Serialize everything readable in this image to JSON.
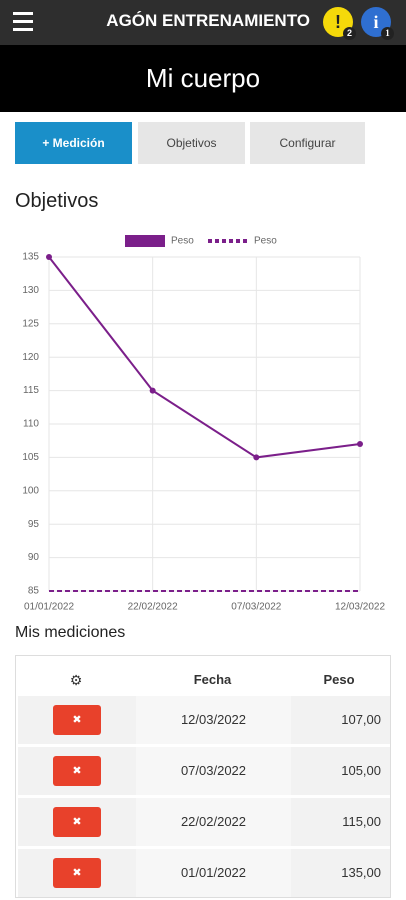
{
  "header": {
    "title": "AGÓN ENTRENAMIENTO",
    "badges": [
      2,
      1
    ]
  },
  "page_title": "Mi cuerpo",
  "tabs": [
    "+ Medición",
    "Objetivos",
    "Configurar"
  ],
  "section_title": "Objetivos",
  "chart_data": {
    "type": "line",
    "categories": [
      "01/01/2022",
      "22/02/2022",
      "07/03/2022",
      "12/03/2022"
    ],
    "series": [
      {
        "name": "Peso",
        "color": "#7b1f8a",
        "values": [
          135,
          115,
          105,
          107
        ],
        "dashed": false
      },
      {
        "name": "Peso",
        "color": "#7b1f8a",
        "values": [
          85,
          85,
          85,
          85
        ],
        "dashed": true
      }
    ],
    "ylim": [
      85,
      135
    ],
    "yticks": [
      85,
      90,
      95,
      100,
      105,
      110,
      115,
      120,
      125,
      130,
      135
    ],
    "grid": true
  },
  "measurements_title": "Mis mediciones",
  "table": {
    "columns": [
      "Fecha",
      "Peso"
    ],
    "rows": [
      [
        "12/03/2022",
        "107,00"
      ],
      [
        "07/03/2022",
        "105,00"
      ],
      [
        "22/02/2022",
        "115,00"
      ],
      [
        "01/01/2022",
        "135,00"
      ]
    ]
  }
}
